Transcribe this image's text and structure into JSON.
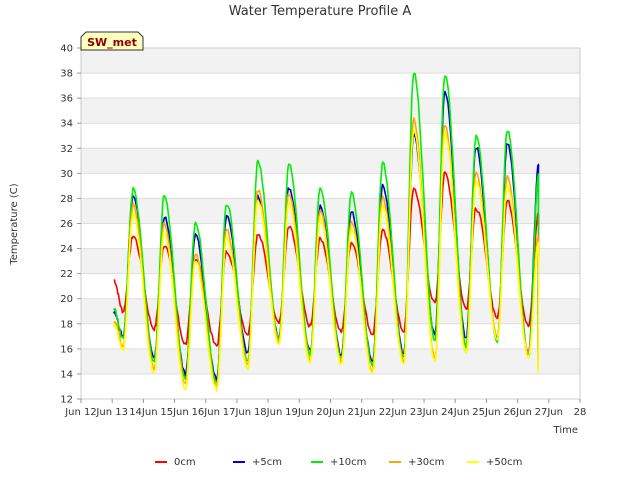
{
  "chart_data": {
    "type": "line",
    "title": "Water Temperature Profile A",
    "xlabel": "Time",
    "ylabel": "Temperature (C)",
    "badge": "SW_met",
    "xlim": [
      12.0,
      28.0
    ],
    "ylim": [
      12,
      40
    ],
    "yticks": [
      12,
      14,
      16,
      18,
      20,
      22,
      24,
      26,
      28,
      30,
      32,
      34,
      36,
      38,
      40
    ],
    "xticks": [
      {
        "x": 12,
        "label": "Jun 12"
      },
      {
        "x": 13,
        "label": "Jun 13"
      },
      {
        "x": 14,
        "label": "14Jun"
      },
      {
        "x": 15,
        "label": "15Jun"
      },
      {
        "x": 16,
        "label": "16Jun"
      },
      {
        "x": 17,
        "label": "17Jun"
      },
      {
        "x": 18,
        "label": "18Jun"
      },
      {
        "x": 19,
        "label": "19Jun"
      },
      {
        "x": 20,
        "label": "20Jun"
      },
      {
        "x": 21,
        "label": "21Jun"
      },
      {
        "x": 22,
        "label": "22Jun"
      },
      {
        "x": 23,
        "label": "23Jun"
      },
      {
        "x": 24,
        "label": "24Jun"
      },
      {
        "x": 25,
        "label": "25Jun"
      },
      {
        "x": 26,
        "label": "26Jun"
      },
      {
        "x": 27,
        "label": "27Jun"
      },
      {
        "x": 28,
        "label": "28"
      }
    ],
    "grid": "horizontal",
    "legend_position": "bottom",
    "days": [
      13,
      14,
      15,
      16,
      17,
      18,
      19,
      20,
      21,
      22,
      23,
      24,
      25,
      26
    ],
    "series": [
      {
        "name": "0cm",
        "color": "#ff0000",
        "start": 21.5,
        "end": 18.9,
        "peaks": [
          25.0,
          24.3,
          23.2,
          23.8,
          25.1,
          25.7,
          24.8,
          24.5,
          25.4,
          28.8,
          30.0,
          27.2,
          27.8,
          26.8
        ],
        "mins": [
          19.0,
          17.6,
          16.4,
          16.2,
          17.2,
          18.2,
          17.8,
          17.4,
          17.2,
          17.4,
          19.6,
          19.2,
          18.5,
          17.8
        ]
      },
      {
        "name": "+5cm",
        "color": "#0000cc",
        "start": 19.0,
        "end": 15.8,
        "peaks": [
          28.3,
          26.5,
          25.0,
          26.6,
          28.2,
          28.9,
          27.3,
          26.9,
          29.0,
          33.0,
          36.5,
          32.1,
          32.4,
          30.7
        ],
        "mins": [
          17.0,
          15.2,
          14.0,
          13.6,
          15.6,
          17.0,
          15.8,
          15.5,
          15.0,
          15.6,
          17.2,
          16.8,
          16.8,
          15.6
        ]
      },
      {
        "name": "+10cm",
        "color": "#00ee00",
        "start": 19.2,
        "end": 15.2,
        "peaks": [
          28.7,
          28.2,
          26.0,
          27.6,
          30.9,
          30.7,
          28.9,
          28.5,
          30.8,
          38.0,
          37.8,
          32.9,
          33.5,
          29.8
        ],
        "mins": [
          16.8,
          15.0,
          13.6,
          13.2,
          15.0,
          16.8,
          15.6,
          15.2,
          14.6,
          15.2,
          16.6,
          16.2,
          16.6,
          15.4
        ]
      },
      {
        "name": "+30cm",
        "color": "#ffa500",
        "start": 18.3,
        "end": 14.6,
        "peaks": [
          27.5,
          26.0,
          23.5,
          25.5,
          28.7,
          28.4,
          27.0,
          26.1,
          28.1,
          34.3,
          33.9,
          30.0,
          29.7,
          25.0
        ],
        "mins": [
          16.2,
          14.4,
          13.2,
          13.0,
          14.8,
          16.6,
          15.2,
          15.0,
          14.2,
          15.0,
          15.2,
          15.8,
          17.0,
          15.6
        ]
      },
      {
        "name": "+50cm",
        "color": "#ffff00",
        "start": 18.0,
        "end": 14.3,
        "peaks": [
          26.8,
          25.3,
          23.0,
          24.8,
          27.9,
          27.6,
          26.4,
          25.6,
          27.4,
          33.5,
          33.2,
          29.3,
          29.0,
          24.4
        ],
        "mins": [
          15.9,
          14.1,
          12.9,
          12.8,
          14.5,
          16.4,
          15.0,
          14.8,
          14.0,
          14.8,
          15.0,
          15.6,
          16.8,
          15.4
        ]
      }
    ]
  }
}
